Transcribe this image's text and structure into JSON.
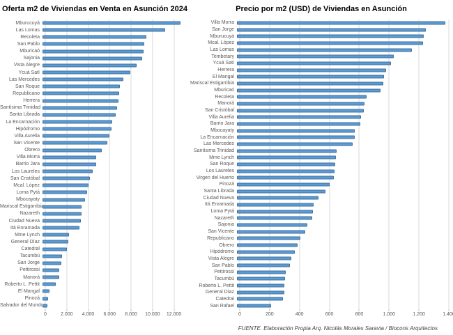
{
  "colors": {
    "bar_fill": "#5b9bd5",
    "bar_border": "#41719c",
    "gridline": "#d9d9d9",
    "axis_text": "#595959",
    "title_text": "#000000",
    "background": "#ffffff"
  },
  "footer": {
    "source_text": "FUENTE. Elaboración Propia Arq. Nicolás Morales Saravia / Biocons Arquitectos"
  },
  "chart_data": [
    {
      "type": "bar",
      "orientation": "horizontal",
      "title": "Oferta m2 de Viviendas en Venta en Asunción 2024",
      "xlabel": "",
      "ylabel": "",
      "legend": "none",
      "grid": "vertical",
      "xlim": [
        0,
        13000
      ],
      "x_ticks": [
        0,
        2000,
        4000,
        6000,
        8000,
        10000,
        12000
      ],
      "x_tick_labels": [
        "0",
        "2.000",
        "4.000",
        "6.000",
        "8.000",
        "10.000",
        "12.000"
      ],
      "categories": [
        "Mburucuyá",
        "Las Lomas",
        "Recoleta",
        "San Pablo",
        "Mburicaó",
        "Sajonia",
        "Vista Alegre",
        "Ycuá Satí",
        "Las Mercedes",
        "San Roque",
        "Republicano",
        "Herrera",
        "Santísima Trinidad",
        "Santa Librada",
        "La Encarnación",
        "Hipódromo",
        "Villa Aurelia",
        "San Vicente",
        "Obrero",
        "Villa Morra",
        "Barrio Jara",
        "Los Laureles",
        "San Cristóbal",
        "Mcal. López",
        "Loma Pytá",
        "Mbocayaty",
        "Mariscal Estigarribia",
        "Nazareth",
        "Ciudad Nueva",
        "Itá Enramada",
        "Mme Lynch",
        "General Díaz",
        "Catedral",
        "Tacumbú",
        "San Jorge",
        "Pettirossi",
        "Manorá",
        "Roberto L. Pettit",
        "El Mangal",
        "Pinozá",
        "Salvador del Mundo"
      ],
      "values": [
        12600,
        11200,
        9500,
        9300,
        9250,
        9100,
        8600,
        8000,
        7400,
        7100,
        7000,
        6950,
        6800,
        6700,
        6400,
        6300,
        6100,
        5900,
        5400,
        4900,
        4880,
        4600,
        4350,
        4200,
        4100,
        3900,
        3600,
        3570,
        3500,
        3350,
        2400,
        2350,
        2250,
        1800,
        1750,
        1550,
        1500,
        1200,
        620,
        520,
        420
      ]
    },
    {
      "type": "bar",
      "orientation": "horizontal",
      "title": "Precio por m2 (USD) de Viviendas en Asunción",
      "xlabel": "",
      "ylabel": "",
      "legend": "none",
      "grid": "vertical",
      "xlim": [
        0,
        1400
      ],
      "x_ticks": [
        0,
        200,
        400,
        600,
        800,
        1000,
        1200,
        1400
      ],
      "x_tick_labels": [
        "0",
        "200",
        "400",
        "600",
        "800",
        "1.000",
        "1.200",
        "1.400"
      ],
      "categories": [
        "Villa Morra",
        "San Jorge",
        "Mburucuyá",
        "Mcal. López",
        "Las Lomas",
        "Tembetary",
        "Ycuá Satí",
        "Herrera",
        "El Mangal",
        "Mariscal Estigarribia",
        "Mburicaó",
        "Recoleta",
        "Manorá",
        "San Cristóbal",
        "Villa Aurelia",
        "Barrio Jara",
        "Mbocayaty",
        "La Encarnación",
        "Las Mercedes",
        "Santísima Trinidad",
        "Mme Lynch",
        "San Roque",
        "Los Laureles",
        "Virgen del Huerto",
        "Pinozá",
        "Santa Librada",
        "Ciudad Nueva",
        "Itá Enramada",
        "Loma Pytá",
        "Nazareth",
        "Sajonia",
        "San Vicente",
        "Republicano",
        "Obrero",
        "Hipódromo",
        "Vista Alegre",
        "San Pablo",
        "Pettirossi",
        "Tacumbú",
        "Roberto L. Pettit",
        "General Díaz",
        "Catedral",
        "San Rafael"
      ],
      "values": [
        1375,
        1250,
        1232,
        1228,
        1158,
        1035,
        1018,
        986,
        970,
        965,
        947,
        858,
        845,
        836,
        818,
        815,
        780,
        776,
        765,
        657,
        653,
        650,
        646,
        641,
        611,
        585,
        539,
        506,
        503,
        498,
        467,
        451,
        417,
        401,
        380,
        357,
        352,
        322,
        319,
        314,
        311,
        302,
        224
      ]
    }
  ]
}
